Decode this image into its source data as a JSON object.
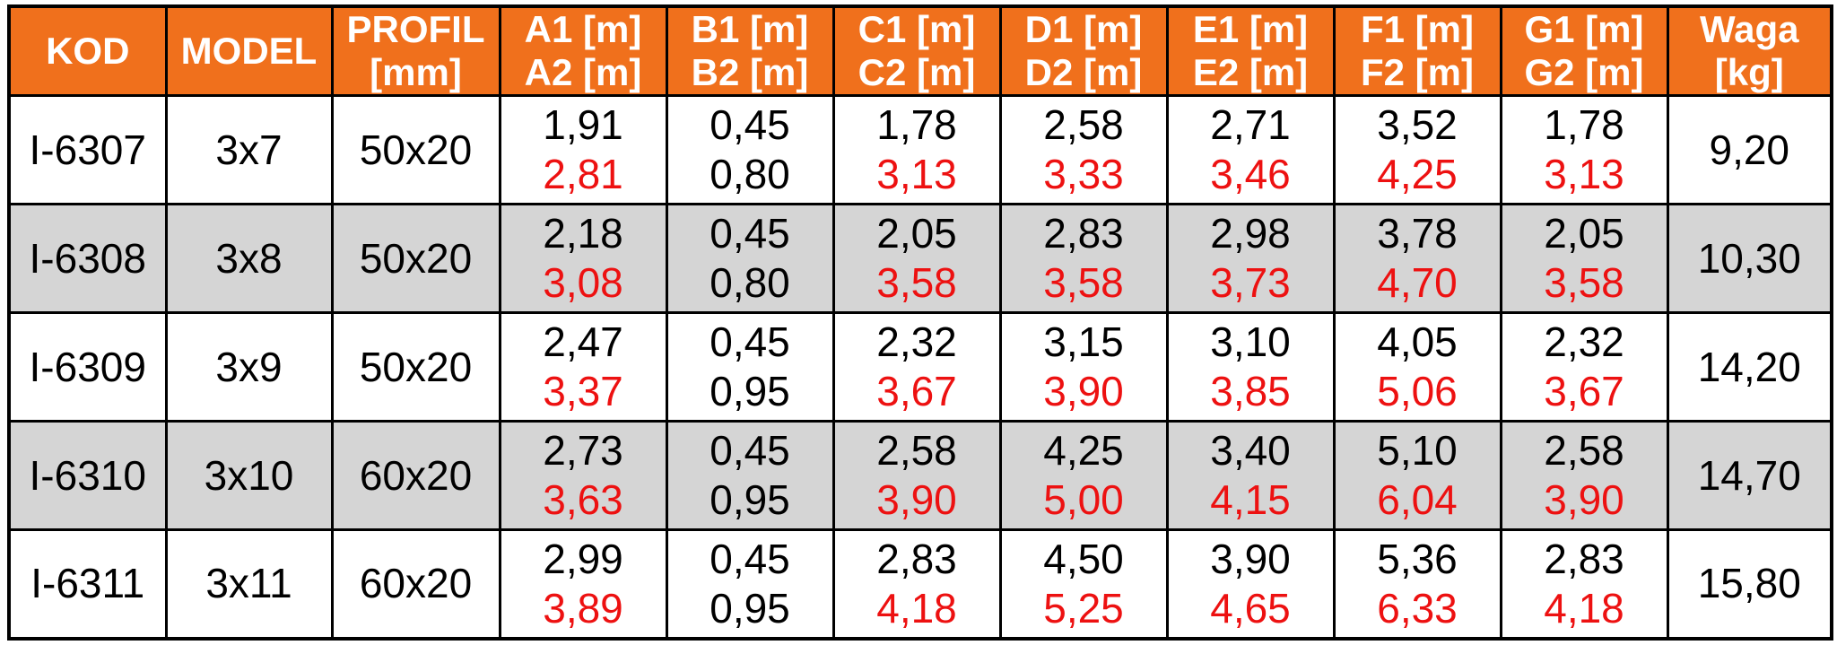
{
  "chart_data": {
    "type": "table",
    "columns": [
      {
        "id": "kod",
        "label_line1": "KOD",
        "label_line2": ""
      },
      {
        "id": "model",
        "label_line1": "MODEL",
        "label_line2": ""
      },
      {
        "id": "profil",
        "label_line1": "PROFIL",
        "label_line2": "[mm]"
      },
      {
        "id": "a",
        "label_line1": "A1 [m]",
        "label_line2": "A2 [m]"
      },
      {
        "id": "b",
        "label_line1": "B1 [m]",
        "label_line2": "B2 [m]"
      },
      {
        "id": "c",
        "label_line1": "C1 [m]",
        "label_line2": "C2 [m]"
      },
      {
        "id": "d",
        "label_line1": "D1 [m]",
        "label_line2": "D2 [m]"
      },
      {
        "id": "e",
        "label_line1": "E1 [m]",
        "label_line2": "E2 [m]"
      },
      {
        "id": "f",
        "label_line1": "F1 [m]",
        "label_line2": "F2 [m]"
      },
      {
        "id": "g",
        "label_line1": "G1 [m]",
        "label_line2": "G2 [m]"
      },
      {
        "id": "waga",
        "label_line1": "Waga",
        "label_line2": "[kg]"
      }
    ],
    "rows": [
      {
        "kod": "I-6307",
        "model": "3x7",
        "profil": "50x20",
        "a1": "1,91",
        "a2": "2,81",
        "b1": "0,45",
        "b2": "0,80",
        "c1": "1,78",
        "c2": "3,13",
        "d1": "2,58",
        "d2": "3,33",
        "e1": "2,71",
        "e2": "3,46",
        "f1": "3,52",
        "f2": "4,25",
        "g1": "1,78",
        "g2": "3,13",
        "waga": "9,20"
      },
      {
        "kod": "I-6308",
        "model": "3x8",
        "profil": "50x20",
        "a1": "2,18",
        "a2": "3,08",
        "b1": "0,45",
        "b2": "0,80",
        "c1": "2,05",
        "c2": "3,58",
        "d1": "2,83",
        "d2": "3,58",
        "e1": "2,98",
        "e2": "3,73",
        "f1": "3,78",
        "f2": "4,70",
        "g1": "2,05",
        "g2": "3,58",
        "waga": "10,30"
      },
      {
        "kod": "I-6309",
        "model": "3x9",
        "profil": "50x20",
        "a1": "2,47",
        "a2": "3,37",
        "b1": "0,45",
        "b2": "0,95",
        "c1": "2,32",
        "c2": "3,67",
        "d1": "3,15",
        "d2": "3,90",
        "e1": "3,10",
        "e2": "3,85",
        "f1": "4,05",
        "f2": "5,06",
        "g1": "2,32",
        "g2": "3,67",
        "waga": "14,20"
      },
      {
        "kod": "I-6310",
        "model": "3x10",
        "profil": "60x20",
        "a1": "2,73",
        "a2": "3,63",
        "b1": "0,45",
        "b2": "0,95",
        "c1": "2,58",
        "c2": "3,90",
        "d1": "4,25",
        "d2": "5,00",
        "e1": "3,40",
        "e2": "4,15",
        "f1": "5,10",
        "f2": "6,04",
        "g1": "2,58",
        "g2": "3,90",
        "waga": "14,70"
      },
      {
        "kod": "I-6311",
        "model": "3x11",
        "profil": "60x20",
        "a1": "2,99",
        "a2": "3,89",
        "b1": "0,45",
        "b2": "0,95",
        "c1": "2,83",
        "c2": "4,18",
        "d1": "4,50",
        "d2": "5,25",
        "e1": "3,90",
        "e2": "4,65",
        "f1": "5,36",
        "f2": "6,33",
        "g1": "2,83",
        "g2": "4,18",
        "waga": "15,80"
      }
    ]
  },
  "colors": {
    "header_bg": "#F0701C",
    "header_text": "#FFFFFF",
    "row_alt_bg": "#D5D5D5",
    "secondary_value_red": "#ED1111",
    "primary_text": "#000000",
    "border": "#000000"
  }
}
